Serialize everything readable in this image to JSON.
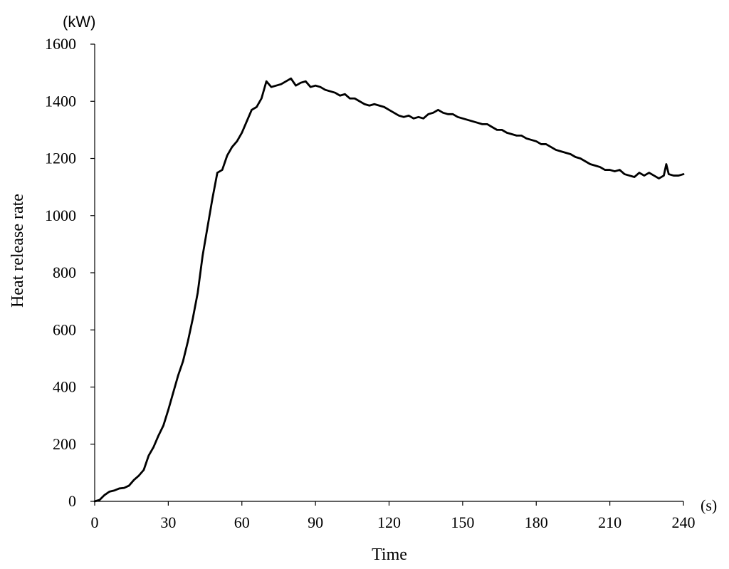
{
  "chart_data": {
    "type": "line",
    "title": "",
    "xlabel": "Time",
    "ylabel": "Heat release rate",
    "x_unit": "(s)",
    "y_unit": "(kW)",
    "xlim": [
      0,
      240
    ],
    "ylim": [
      0,
      1600
    ],
    "x_ticks": [
      0,
      30,
      60,
      90,
      120,
      150,
      180,
      210,
      240
    ],
    "y_ticks": [
      0,
      200,
      400,
      600,
      800,
      1000,
      1200,
      1400,
      1600
    ],
    "grid": false,
    "legend": "none",
    "line_color": "#000000",
    "series": [
      {
        "x": [
          0,
          2,
          4,
          6,
          8,
          10,
          12,
          14,
          16,
          18,
          20,
          22,
          24,
          26,
          28,
          30,
          32,
          34,
          36,
          38,
          40,
          42,
          44,
          46,
          48,
          50,
          52,
          54,
          56,
          58,
          60,
          62,
          64,
          66,
          68,
          70,
          72,
          74,
          76,
          78,
          80,
          82,
          84,
          86,
          88,
          90,
          92,
          94,
          96,
          98,
          100,
          102,
          104,
          106,
          108,
          110,
          112,
          114,
          116,
          118,
          120,
          122,
          124,
          126,
          128,
          130,
          132,
          134,
          136,
          138,
          140,
          142,
          144,
          146,
          148,
          150,
          152,
          154,
          156,
          158,
          160,
          162,
          164,
          166,
          168,
          170,
          172,
          174,
          176,
          178,
          180,
          182,
          184,
          186,
          188,
          190,
          192,
          194,
          196,
          198,
          200,
          202,
          204,
          206,
          208,
          210,
          212,
          214,
          216,
          218,
          220,
          222,
          224,
          226,
          228,
          230,
          232,
          233,
          234,
          236,
          238,
          240
        ],
        "values": [
          0,
          5,
          22,
          34,
          38,
          45,
          47,
          55,
          75,
          90,
          110,
          160,
          190,
          230,
          265,
          320,
          380,
          440,
          490,
          560,
          640,
          730,
          860,
          960,
          1060,
          1150,
          1160,
          1210,
          1240,
          1260,
          1290,
          1330,
          1370,
          1380,
          1410,
          1470,
          1450,
          1455,
          1460,
          1470,
          1480,
          1455,
          1465,
          1470,
          1450,
          1455,
          1450,
          1440,
          1435,
          1430,
          1420,
          1425,
          1410,
          1410,
          1400,
          1390,
          1385,
          1390,
          1385,
          1380,
          1370,
          1360,
          1350,
          1345,
          1350,
          1340,
          1345,
          1340,
          1355,
          1360,
          1370,
          1360,
          1355,
          1355,
          1345,
          1340,
          1335,
          1330,
          1325,
          1320,
          1320,
          1310,
          1300,
          1300,
          1290,
          1285,
          1280,
          1280,
          1270,
          1265,
          1260,
          1250,
          1250,
          1240,
          1230,
          1225,
          1220,
          1215,
          1205,
          1200,
          1190,
          1180,
          1175,
          1170,
          1160,
          1160,
          1155,
          1160,
          1145,
          1140,
          1135,
          1150,
          1140,
          1150,
          1140,
          1130,
          1140,
          1180,
          1145,
          1140,
          1140,
          1145
        ]
      }
    ]
  }
}
